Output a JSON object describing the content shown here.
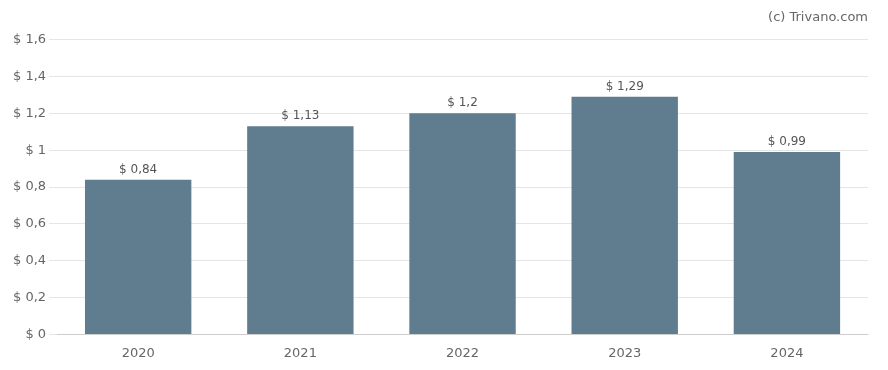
{
  "chart_data": {
    "type": "bar",
    "annotations": [
      "(c) Trivano.com"
    ],
    "categories": [
      "2020",
      "2021",
      "2022",
      "2023",
      "2024"
    ],
    "values": [
      0.84,
      1.13,
      1.2,
      1.29,
      0.99
    ],
    "value_labels": [
      "$ 0,84",
      "$ 1,13",
      "$ 1,2",
      "$ 1,29",
      "$ 0,99"
    ],
    "color": "#5f7d8e",
    "ylim": [
      0,
      1.6
    ],
    "yticks": [
      {
        "value": 0,
        "label": "$ 0"
      },
      {
        "value": 0.2,
        "label": "$ 0,2"
      },
      {
        "value": 0.4,
        "label": "$ 0,4"
      },
      {
        "value": 0.6,
        "label": "$ 0,6"
      },
      {
        "value": 0.8,
        "label": "$ 0,8"
      },
      {
        "value": 1.0,
        "label": "$ 1"
      },
      {
        "value": 1.2,
        "label": "$ 1,2"
      },
      {
        "value": 1.4,
        "label": "$ 1,4"
      },
      {
        "value": 1.6,
        "label": "$ 1,6"
      }
    ],
    "grid": true,
    "data_labels": true
  }
}
